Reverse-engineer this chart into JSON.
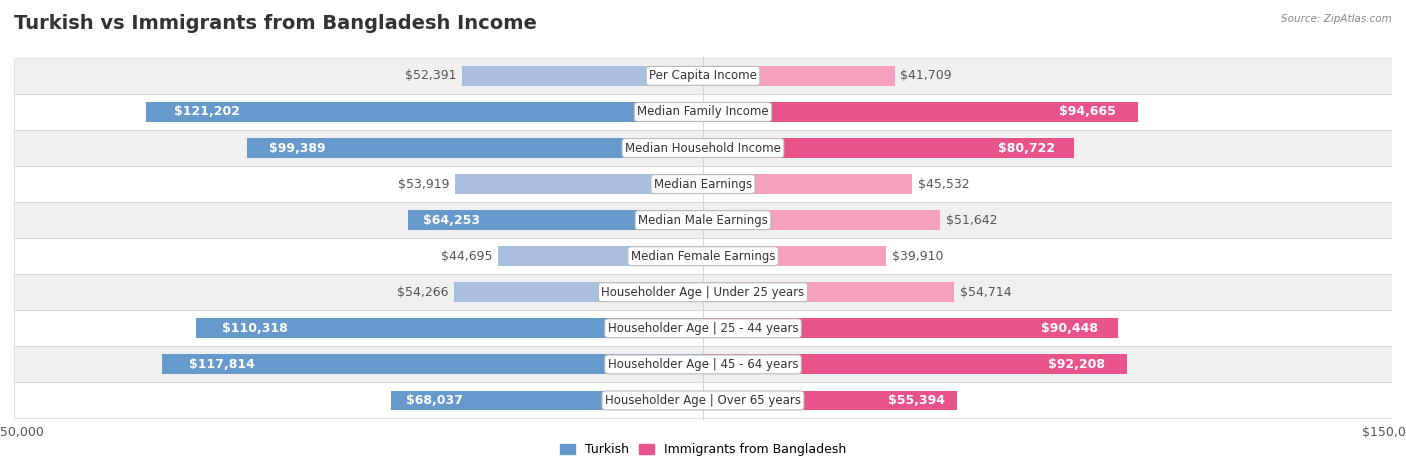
{
  "title": "Turkish vs Immigrants from Bangladesh Income",
  "source": "Source: ZipAtlas.com",
  "categories": [
    "Per Capita Income",
    "Median Family Income",
    "Median Household Income",
    "Median Earnings",
    "Median Male Earnings",
    "Median Female Earnings",
    "Householder Age | Under 25 years",
    "Householder Age | 25 - 44 years",
    "Householder Age | 45 - 64 years",
    "Householder Age | Over 65 years"
  ],
  "turkish_values": [
    52391,
    121202,
    99389,
    53919,
    64253,
    44695,
    54266,
    110318,
    117814,
    68037
  ],
  "bangladesh_values": [
    41709,
    94665,
    80722,
    45532,
    51642,
    39910,
    54714,
    90448,
    92208,
    55394
  ],
  "turkish_labels": [
    "$52,391",
    "$121,202",
    "$99,389",
    "$53,919",
    "$64,253",
    "$44,695",
    "$54,266",
    "$110,318",
    "$117,814",
    "$68,037"
  ],
  "bangladesh_labels": [
    "$41,709",
    "$94,665",
    "$80,722",
    "$45,532",
    "$51,642",
    "$39,910",
    "$54,714",
    "$90,448",
    "$92,208",
    "$55,394"
  ],
  "turkish_color_large": "#6699cc",
  "turkish_color_small": "#aabedd",
  "bangladesh_color_large": "#e8538a",
  "bangladesh_color_small": "#f4a0be",
  "label_threshold": 60000,
  "max_value": 150000,
  "bar_height": 0.55,
  "background_color": "#ffffff",
  "row_bg_even": "#f0f0f0",
  "row_bg_odd": "#ffffff",
  "legend_turkish": "Turkish",
  "legend_bangladesh": "Immigrants from Bangladesh",
  "title_fontsize": 14,
  "label_fontsize": 9,
  "category_fontsize": 8.5,
  "axis_fontsize": 9,
  "row_border_color": "#cccccc",
  "inside_label_color": "#ffffff",
  "outside_label_color": "#555555",
  "inside_threshold": 55000
}
